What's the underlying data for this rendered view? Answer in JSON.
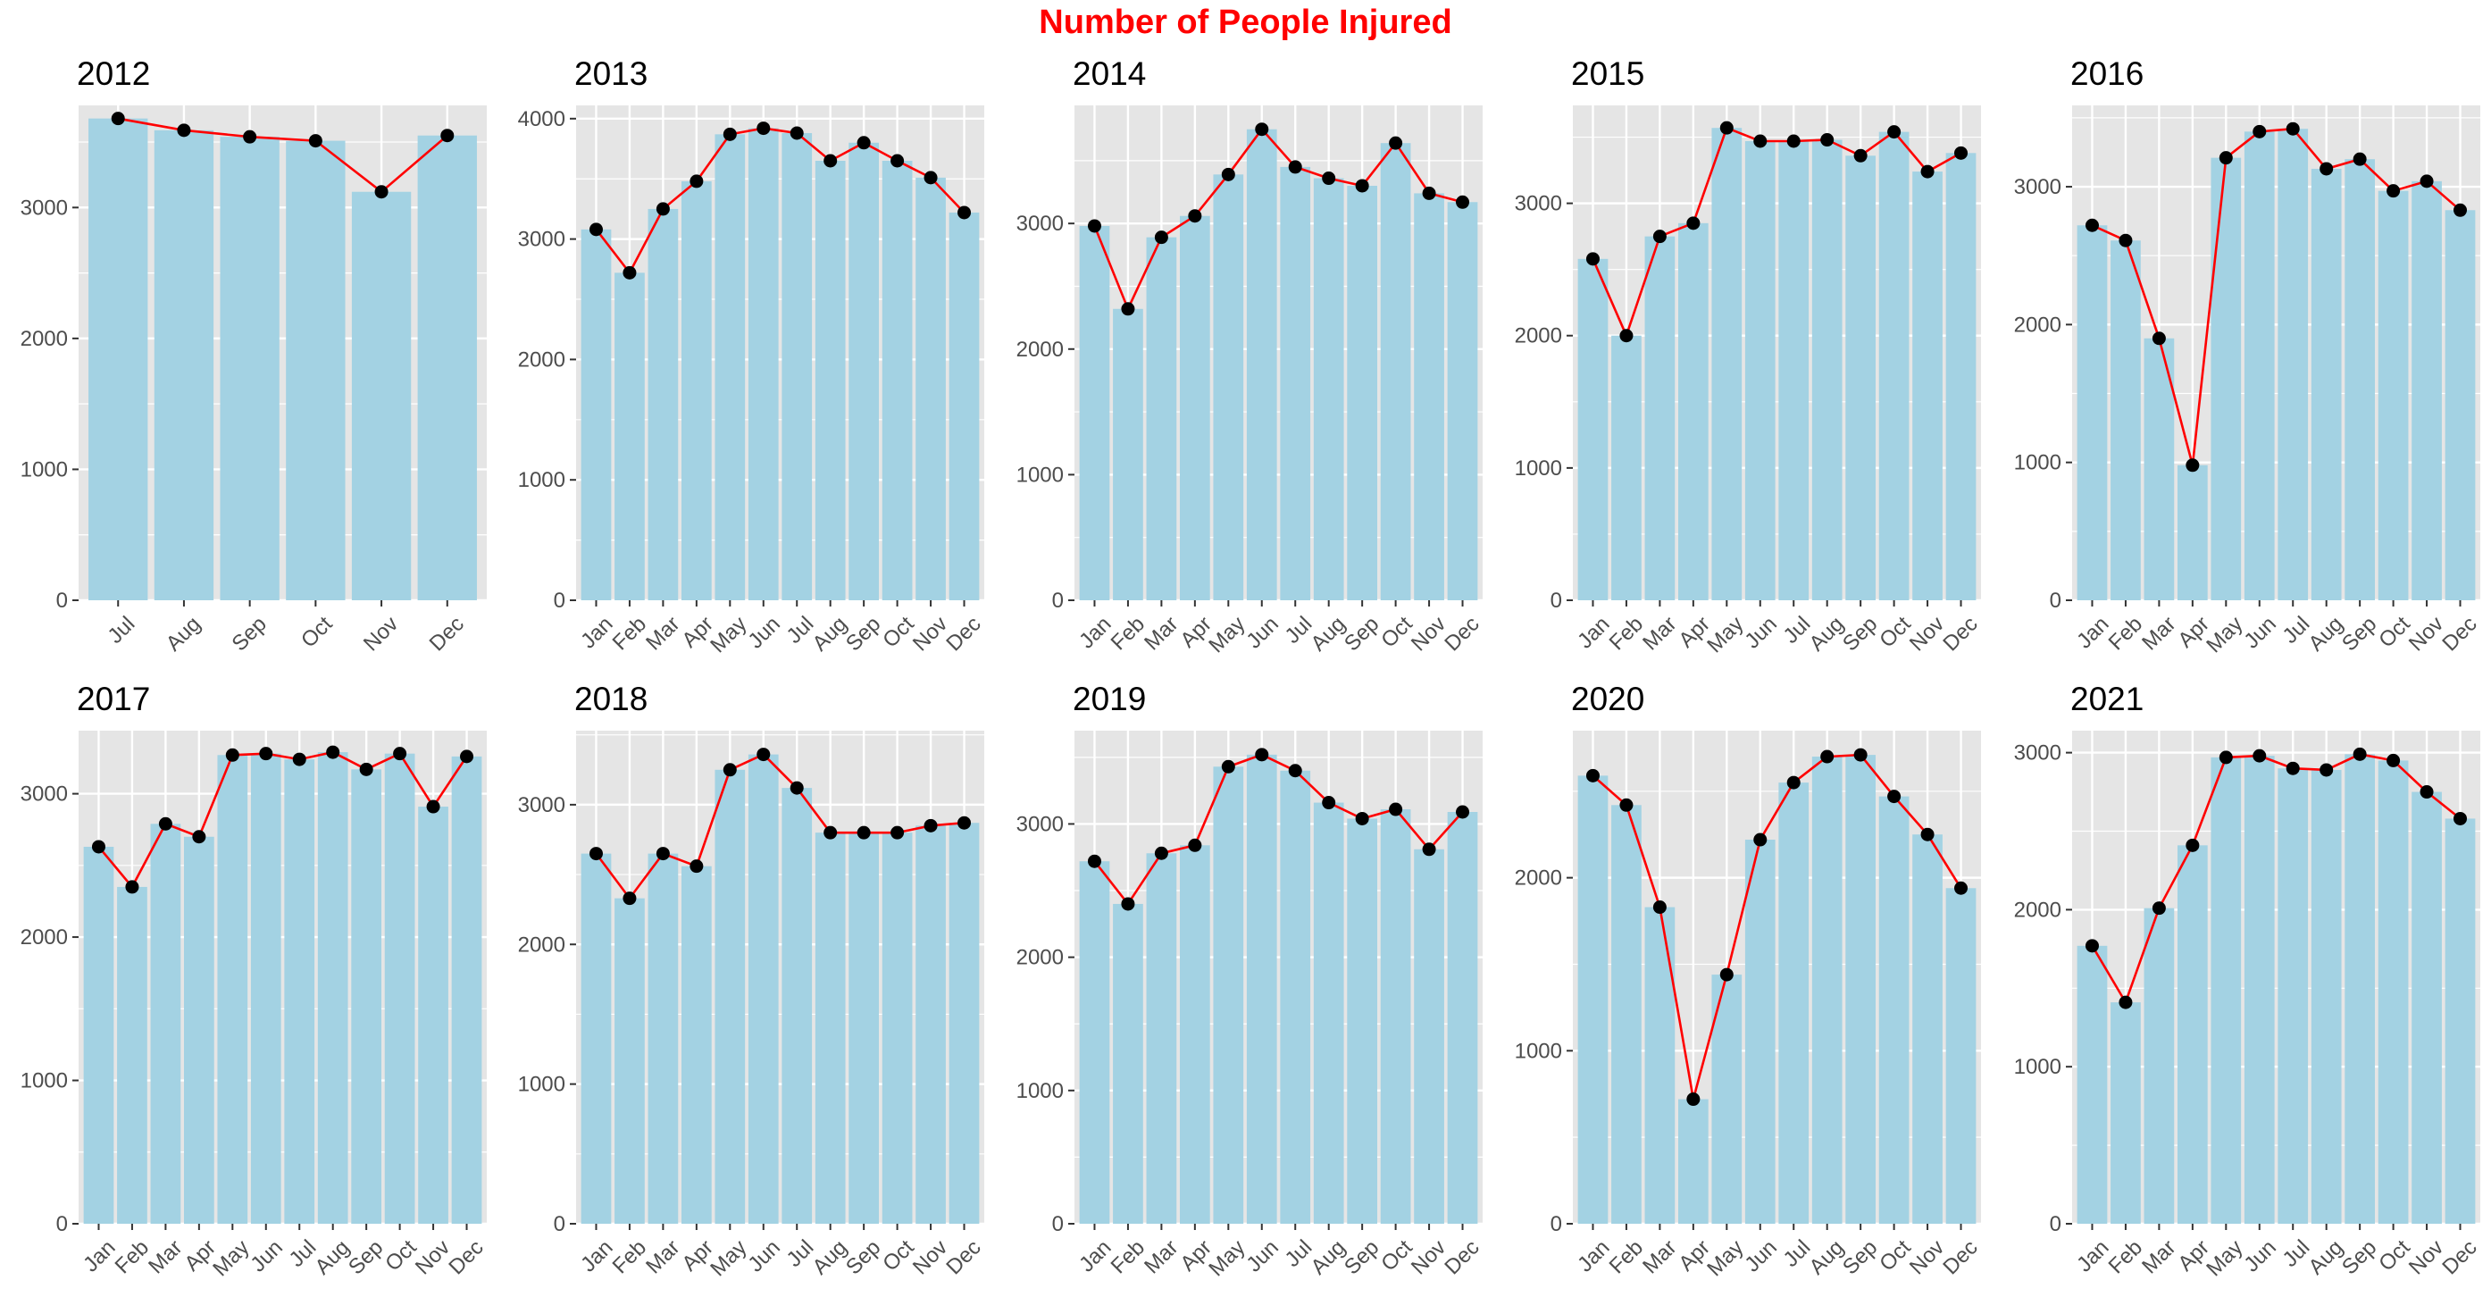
{
  "title": "Number of People Injured",
  "colors": {
    "title": "#ff0000",
    "panel_bg": "#e5e5e5",
    "grid": "#ffffff",
    "bar": "#a3d2e3",
    "line": "#ff0000",
    "point": "#000000",
    "tick_text": "#4d4d4d"
  },
  "chart_data": [
    {
      "type": "bar",
      "title": "2012",
      "categories": [
        "Jul",
        "Aug",
        "Sep",
        "Oct",
        "Nov",
        "Dec"
      ],
      "values": [
        3680,
        3590,
        3540,
        3510,
        3120,
        3550
      ],
      "ylim": [
        0,
        3780
      ],
      "yticks": [
        0,
        1000,
        2000,
        3000
      ],
      "overlay": "line with points",
      "grid": true
    },
    {
      "type": "bar",
      "title": "2013",
      "categories": [
        "Jan",
        "Feb",
        "Mar",
        "Apr",
        "May",
        "Jun",
        "Jul",
        "Aug",
        "Sep",
        "Oct",
        "Nov",
        "Dec"
      ],
      "values": [
        3080,
        2720,
        3250,
        3480,
        3870,
        3920,
        3880,
        3650,
        3800,
        3650,
        3510,
        3220
      ],
      "ylim": [
        0,
        4110
      ],
      "yticks": [
        0,
        1000,
        2000,
        3000,
        4000
      ],
      "overlay": "line with points",
      "grid": true
    },
    {
      "type": "bar",
      "title": "2014",
      "categories": [
        "Jan",
        "Feb",
        "Mar",
        "Apr",
        "May",
        "Jun",
        "Jul",
        "Aug",
        "Sep",
        "Oct",
        "Nov",
        "Dec"
      ],
      "values": [
        2980,
        2320,
        2890,
        3060,
        3390,
        3750,
        3450,
        3360,
        3300,
        3640,
        3240,
        3170
      ],
      "ylim": [
        0,
        3940
      ],
      "yticks": [
        0,
        1000,
        2000,
        3000
      ],
      "overlay": "line with points",
      "grid": true
    },
    {
      "type": "bar",
      "title": "2015",
      "categories": [
        "Jan",
        "Feb",
        "Mar",
        "Apr",
        "May",
        "Jun",
        "Jul",
        "Aug",
        "Sep",
        "Oct",
        "Nov",
        "Dec"
      ],
      "values": [
        2580,
        2000,
        2750,
        2850,
        3570,
        3470,
        3470,
        3480,
        3360,
        3540,
        3240,
        3380
      ],
      "ylim": [
        0,
        3740
      ],
      "yticks": [
        0,
        1000,
        2000,
        3000
      ],
      "overlay": "line with points",
      "grid": true
    },
    {
      "type": "bar",
      "title": "2016",
      "categories": [
        "Jan",
        "Feb",
        "Mar",
        "Apr",
        "May",
        "Jun",
        "Jul",
        "Aug",
        "Sep",
        "Oct",
        "Nov",
        "Dec"
      ],
      "values": [
        2720,
        2610,
        1900,
        980,
        3210,
        3400,
        3420,
        3130,
        3200,
        2970,
        3040,
        2830
      ],
      "ylim": [
        0,
        3590
      ],
      "yticks": [
        0,
        1000,
        2000,
        3000
      ],
      "overlay": "line with points",
      "grid": true
    },
    {
      "type": "bar",
      "title": "2017",
      "categories": [
        "Jan",
        "Feb",
        "Mar",
        "Apr",
        "May",
        "Jun",
        "Jul",
        "Aug",
        "Sep",
        "Oct",
        "Nov",
        "Dec"
      ],
      "values": [
        2630,
        2350,
        2790,
        2700,
        3270,
        3280,
        3240,
        3290,
        3170,
        3280,
        2910,
        3260
      ],
      "ylim": [
        0,
        3440
      ],
      "yticks": [
        0,
        1000,
        2000,
        3000
      ],
      "overlay": "line with points",
      "grid": true
    },
    {
      "type": "bar",
      "title": "2018",
      "categories": [
        "Jan",
        "Feb",
        "Mar",
        "Apr",
        "May",
        "Jun",
        "Jul",
        "Aug",
        "Sep",
        "Oct",
        "Nov",
        "Dec"
      ],
      "values": [
        2650,
        2330,
        2650,
        2560,
        3250,
        3360,
        3120,
        2800,
        2800,
        2800,
        2850,
        2870
      ],
      "ylim": [
        0,
        3530
      ],
      "yticks": [
        0,
        1000,
        2000,
        3000
      ],
      "overlay": "line with points",
      "grid": true
    },
    {
      "type": "bar",
      "title": "2019",
      "categories": [
        "Jan",
        "Feb",
        "Mar",
        "Apr",
        "May",
        "Jun",
        "Jul",
        "Aug",
        "Sep",
        "Oct",
        "Nov",
        "Dec"
      ],
      "values": [
        2720,
        2400,
        2780,
        2840,
        3430,
        3520,
        3400,
        3160,
        3040,
        3110,
        2810,
        3090
      ],
      "ylim": [
        0,
        3700
      ],
      "yticks": [
        0,
        1000,
        2000,
        3000
      ],
      "overlay": "line with points",
      "grid": true
    },
    {
      "type": "bar",
      "title": "2020",
      "categories": [
        "Jan",
        "Feb",
        "Mar",
        "Apr",
        "May",
        "Jun",
        "Jul",
        "Aug",
        "Sep",
        "Oct",
        "Nov",
        "Dec"
      ],
      "values": [
        2590,
        2420,
        1830,
        720,
        1440,
        2220,
        2550,
        2700,
        2710,
        2470,
        2250,
        1940
      ],
      "ylim": [
        0,
        2850
      ],
      "yticks": [
        0,
        1000,
        2000
      ],
      "overlay": "line with points",
      "grid": true
    },
    {
      "type": "bar",
      "title": "2021",
      "categories": [
        "Jan",
        "Feb",
        "Mar",
        "Apr",
        "May",
        "Jun",
        "Jul",
        "Aug",
        "Sep",
        "Oct",
        "Nov",
        "Dec"
      ],
      "values": [
        1770,
        1410,
        2010,
        2410,
        2970,
        2980,
        2900,
        2890,
        2990,
        2950,
        2750,
        2580
      ],
      "ylim": [
        0,
        3140
      ],
      "yticks": [
        0,
        1000,
        2000,
        3000
      ],
      "overlay": "line with points",
      "grid": true
    }
  ]
}
